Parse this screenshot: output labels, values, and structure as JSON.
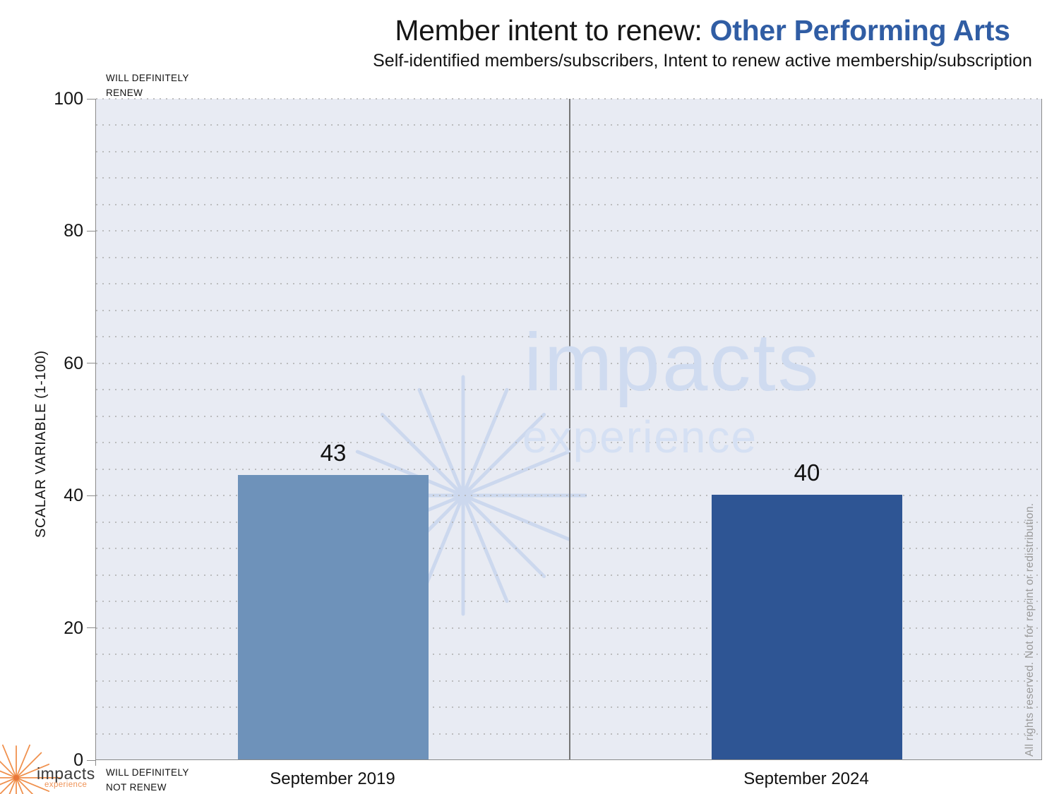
{
  "header": {
    "title_prefix": "Member intent to renew: ",
    "title_highlight": "Other Performing Arts",
    "subtitle": "Self-identified members/subscribers, Intent to renew active membership/subscription"
  },
  "axis": {
    "y_title": "SCALAR VARIABLE (1-100)",
    "top_label_line1": "WILL DEFINITELY",
    "top_label_line2": "RENEW",
    "bottom_label_line1": "WILL DEFINITELY",
    "bottom_label_line2": "NOT RENEW"
  },
  "watermark": {
    "line1": "impacts",
    "line2": "experience"
  },
  "rights_notice": "All rights reserved. Not for reprint or redistribution.",
  "logo": {
    "name": "impacts",
    "tagline": "experience"
  },
  "colors": {
    "bar_2019": "#6e92ba",
    "bar_2024": "#2e5594",
    "title_highlight": "#305da4",
    "plot_background": "#e8ebf3",
    "accent_orange": "#f0914e",
    "watermark_blue": "#ccd8ee"
  },
  "chart_data": {
    "type": "bar",
    "title": "Member intent to renew: Other Performing Arts",
    "subtitle": "Self-identified members/subscribers, Intent to renew active membership/subscription",
    "categories": [
      "September 2019",
      "September 2024"
    ],
    "values": [
      43,
      40
    ],
    "bar_colors": [
      "#6e92ba",
      "#2e5594"
    ],
    "ylabel": "SCALAR VARIABLE (1-100)",
    "ylim": [
      0,
      100
    ],
    "yticks": [
      0,
      20,
      40,
      60,
      80,
      100
    ],
    "minor_grid_step": 4,
    "grid": "dotted horizontal minor gridlines",
    "y_max_annotation": "WILL DEFINITELY RENEW",
    "y_min_annotation": "WILL DEFINITELY NOT RENEW",
    "legend": "none",
    "value_labels": "above bars"
  }
}
